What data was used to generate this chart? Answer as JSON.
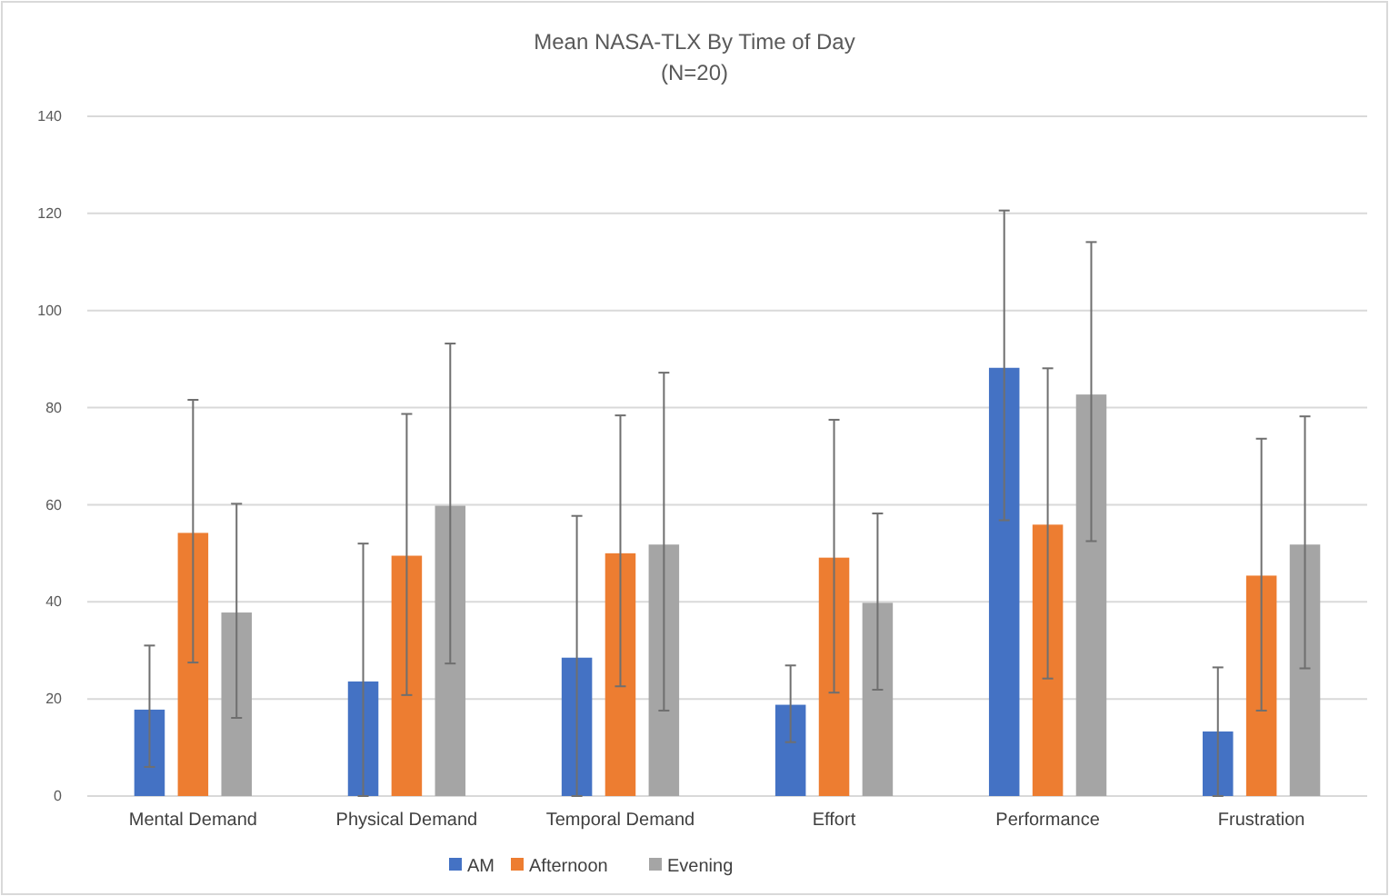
{
  "chart_data": {
    "type": "bar",
    "title": "Mean NASA-TLX By Time of Day",
    "subtitle": "(N=20)",
    "categories": [
      "Mental Demand",
      "Physical Demand",
      "Temporal Demand",
      "Effort",
      "Performance",
      "Frustration"
    ],
    "series": [
      {
        "name": "AM",
        "color": "#4472c4",
        "values": [
          17.8,
          23.6,
          28.5,
          18.8,
          88.2,
          13.3
        ],
        "errors": [
          [
            6,
            31
          ],
          [
            0,
            52
          ],
          [
            0,
            57.7
          ],
          [
            11.1,
            26.9
          ],
          [
            56.8,
            120.6
          ],
          [
            0,
            26.5
          ]
        ]
      },
      {
        "name": "Afternoon",
        "color": "#ed7d31",
        "values": [
          54.2,
          49.5,
          50,
          49.1,
          55.9,
          45.4
        ],
        "errors": [
          [
            27.5,
            81.6
          ],
          [
            20.8,
            78.7
          ],
          [
            22.6,
            78.4
          ],
          [
            21.3,
            77.5
          ],
          [
            24.2,
            88.1
          ],
          [
            17.6,
            73.6
          ]
        ]
      },
      {
        "name": "Evening",
        "color": "#a5a5a5",
        "values": [
          37.8,
          59.8,
          51.8,
          39.8,
          82.7,
          51.8
        ],
        "errors": [
          [
            16.1,
            60.2
          ],
          [
            27.3,
            93.2
          ],
          [
            17.6,
            87.2
          ],
          [
            21.9,
            58.2
          ],
          [
            52.5,
            114.1
          ],
          [
            26.3,
            78.2
          ]
        ]
      }
    ],
    "ylim": [
      0,
      140
    ],
    "yticks": [
      0,
      20,
      40,
      60,
      80,
      100,
      120,
      140
    ],
    "grid": "y",
    "legend": "bottom"
  }
}
